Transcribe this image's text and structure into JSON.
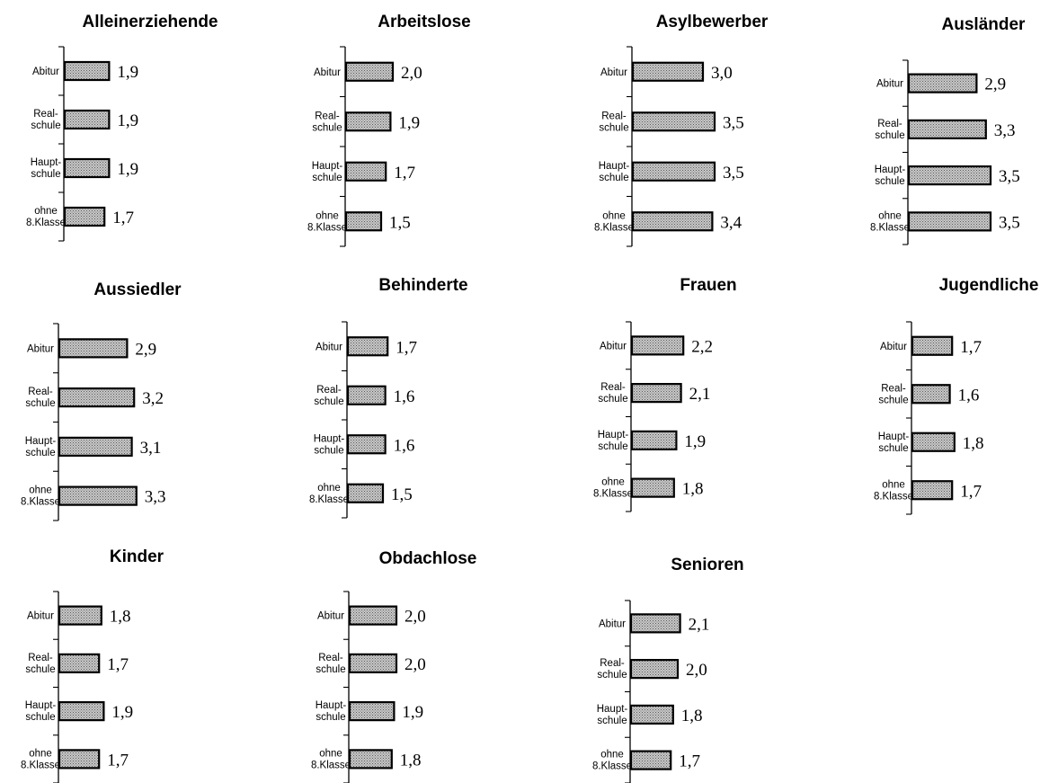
{
  "chart_data": [
    {
      "type": "bar",
      "orientation": "horizontal",
      "title": "Alleinerziehende",
      "categories": [
        "Abitur",
        "Real-schule",
        "Haupt-schule",
        "ohne 8.Klasse"
      ],
      "values": [
        1.9,
        1.9,
        1.9,
        1.7
      ],
      "labels": [
        "1,9",
        "1,9",
        "1,9",
        "1,7"
      ]
    },
    {
      "type": "bar",
      "orientation": "horizontal",
      "title": "Arbeitslose",
      "categories": [
        "Abitur",
        "Real-schule",
        "Haupt-schule",
        "ohne 8.Klasse"
      ],
      "values": [
        2.0,
        1.9,
        1.7,
        1.5
      ],
      "labels": [
        "2,0",
        "1,9",
        "1,7",
        "1,5"
      ]
    },
    {
      "type": "bar",
      "orientation": "horizontal",
      "title": "Asylbewerber",
      "categories": [
        "Abitur",
        "Real-schule",
        "Haupt-schule",
        "ohne 8.Klasse"
      ],
      "values": [
        3.0,
        3.5,
        3.5,
        3.4
      ],
      "labels": [
        "3,0",
        "3,5",
        "3,5",
        "3,4"
      ]
    },
    {
      "type": "bar",
      "orientation": "horizontal",
      "title": "Ausländer",
      "categories": [
        "Abitur",
        "Real-schule",
        "Haupt-schule",
        "ohne 8.Klasse"
      ],
      "values": [
        2.9,
        3.3,
        3.5,
        3.5
      ],
      "labels": [
        "2,9",
        "3,3",
        "3,5",
        "3,5"
      ]
    },
    {
      "type": "bar",
      "orientation": "horizontal",
      "title": "Aussiedler",
      "categories": [
        "Abitur",
        "Real-schule",
        "Haupt-schule",
        "ohne 8.Klasse"
      ],
      "values": [
        2.9,
        3.2,
        3.1,
        3.3
      ],
      "labels": [
        "2,9",
        "3,2",
        "3,1",
        "3,3"
      ]
    },
    {
      "type": "bar",
      "orientation": "horizontal",
      "title": "Behinderte",
      "categories": [
        "Abitur",
        "Real-schule",
        "Haupt-schule",
        "ohne 8.Klasse"
      ],
      "values": [
        1.7,
        1.6,
        1.6,
        1.5
      ],
      "labels": [
        "1,7",
        "1,6",
        "1,6",
        "1,5"
      ]
    },
    {
      "type": "bar",
      "orientation": "horizontal",
      "title": "Frauen",
      "categories": [
        "Abitur",
        "Real-schule",
        "Haupt-schule",
        "ohne 8.Klasse"
      ],
      "values": [
        2.2,
        2.1,
        1.9,
        1.8
      ],
      "labels": [
        "2,2",
        "2,1",
        "1,9",
        "1,8"
      ]
    },
    {
      "type": "bar",
      "orientation": "horizontal",
      "title": "Jugendliche",
      "categories": [
        "Abitur",
        "Real-schule",
        "Haupt-schule",
        "ohne 8.Klasse"
      ],
      "values": [
        1.7,
        1.6,
        1.8,
        1.7
      ],
      "labels": [
        "1,7",
        "1,6",
        "1,8",
        "1,7"
      ]
    },
    {
      "type": "bar",
      "orientation": "horizontal",
      "title": "Kinder",
      "categories": [
        "Abitur",
        "Real-schule",
        "Haupt-schule",
        "ohne 8.Klasse"
      ],
      "values": [
        1.8,
        1.7,
        1.9,
        1.7
      ],
      "labels": [
        "1,8",
        "1,7",
        "1,9",
        "1,7"
      ]
    },
    {
      "type": "bar",
      "orientation": "horizontal",
      "title": "Obdachlose",
      "categories": [
        "Abitur",
        "Real-schule",
        "Haupt-schule",
        "ohne 8.Klasse"
      ],
      "values": [
        2.0,
        2.0,
        1.9,
        1.8
      ],
      "labels": [
        "2,0",
        "2,0",
        "1,9",
        "1,8"
      ]
    },
    {
      "type": "bar",
      "orientation": "horizontal",
      "title": "Senioren",
      "categories": [
        "Abitur",
        "Real-schule",
        "Haupt-schule",
        "ohne 8.Klasse"
      ],
      "values": [
        2.1,
        2.0,
        1.8,
        1.7
      ],
      "labels": [
        "2,1",
        "2,0",
        "1,8",
        "1,7"
      ]
    }
  ],
  "style": {
    "bar_fill": "#c8c8c8",
    "bar_dots": "#5a5a5a",
    "bar_stroke": "#000000",
    "grid": false
  }
}
